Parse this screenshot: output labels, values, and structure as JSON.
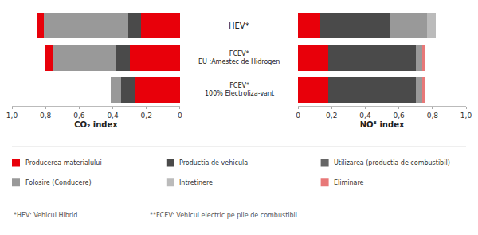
{
  "chart_data": [
    {
      "type": "bar",
      "orientation": "horizontal",
      "stacked": true,
      "grid": false,
      "xlabel": "CO₂ index",
      "categories": [
        "HEV*",
        "FCEV*\nEU :Amestec de Hidrogen",
        "FCEV*\n100% Electroliza-vant"
      ],
      "series": [
        {
          "color": "#e8000a",
          "values": [
            0.23,
            0.3,
            0.27
          ]
        },
        {
          "color": "#4a4a4a",
          "values": [
            0.08,
            0.08,
            0.08
          ]
        },
        {
          "color": "#999999",
          "values": [
            0.5,
            0.38,
            0.06
          ]
        },
        {
          "color": "#e8000a",
          "values": [
            0.04,
            0.04,
            0.0
          ]
        }
      ],
      "xlim": [
        1.0,
        0.0
      ],
      "xticks": [
        0,
        {
          "value": 0.2,
          "label": "0,2"
        },
        {
          "value": 0.4,
          "label": "0,4"
        },
        {
          "value": 0.6,
          "label": "0,6"
        },
        {
          "value": 0.8,
          "label": "0,8"
        },
        {
          "value": 1.0,
          "label": "1,0"
        }
      ]
    },
    {
      "type": "bar",
      "orientation": "horizontal",
      "stacked": true,
      "grid": false,
      "xlabel": "NO⁸ index",
      "categories": [
        "HEV*",
        "FCEV*\nEU :Amestec de Hidrogen",
        "FCEV*\n100% Electroliza-vant"
      ],
      "series": [
        {
          "color": "#e8000a",
          "values": [
            0.13,
            0.18,
            0.18
          ]
        },
        {
          "color": "#4a4a4a",
          "values": [
            0.42,
            0.52,
            0.52
          ]
        },
        {
          "color": "#999999",
          "values": [
            0.22,
            0.04,
            0.04
          ]
        },
        {
          "color": "#bbbbbb",
          "values": [
            0.05,
            0.0,
            0.0
          ]
        },
        {
          "color": "#e87878",
          "values": [
            0.0,
            0.02,
            0.02
          ]
        }
      ],
      "xlim": [
        0.0,
        1.0
      ],
      "xticks": [
        0,
        {
          "value": 0.2,
          "label": "0,2"
        },
        {
          "value": 0.4,
          "label": "0,4"
        },
        {
          "value": 0.6,
          "label": "0,6"
        },
        {
          "value": 0.8,
          "label": "0,8"
        },
        {
          "value": 1.0,
          "label": "1,0"
        }
      ]
    }
  ],
  "legend_entries": [
    {
      "name": "Producerea materialului",
      "color": "#e8000a"
    },
    {
      "name": "Productia de vehicula",
      "color": "#4a4a4a"
    },
    {
      "name": "Utilizarea (productia de combustibil)",
      "color": "#666666"
    },
    {
      "name": "Folosire (Conducere)",
      "color": "#999999"
    },
    {
      "name": "Intretinere",
      "color": "#bbbbbb"
    },
    {
      "name": "Eliminare",
      "color": "#e87878"
    }
  ],
  "annotations": [
    "*HEV: Vehicul Hibrid",
    "**FCEV: Vehicul electric pe pile de combustibil"
  ]
}
